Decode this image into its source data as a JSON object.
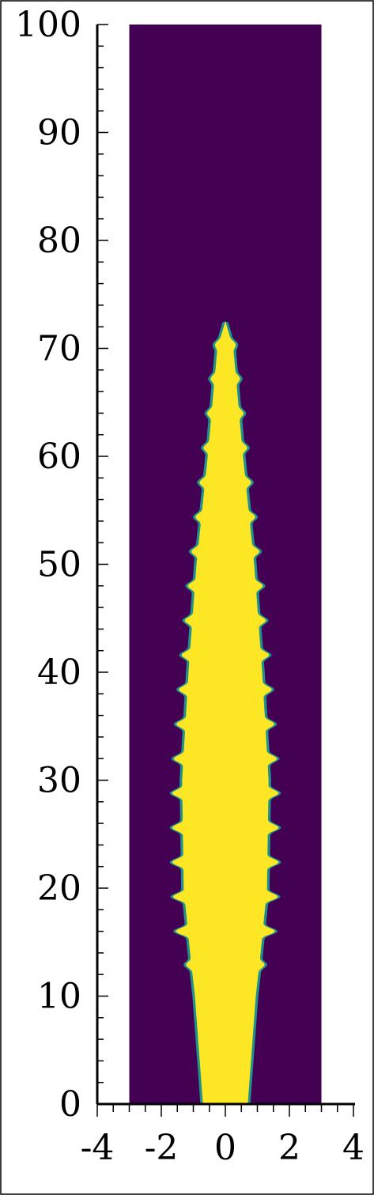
{
  "chart_data": {
    "type": "heatmap",
    "title": "",
    "xlabel": "",
    "ylabel": "",
    "xlim": [
      -4,
      4
    ],
    "ylim": [
      0,
      100
    ],
    "domain_x": [
      -3,
      3
    ],
    "x_ticks": [
      -4,
      -2,
      0,
      2,
      4
    ],
    "x_tick_labels": [
      "-4",
      "-2",
      "0",
      "2",
      "4"
    ],
    "y_ticks": [
      0,
      10,
      20,
      30,
      40,
      50,
      60,
      70,
      80,
      90,
      100
    ],
    "y_tick_labels": [
      "0",
      "10",
      "20",
      "30",
      "40",
      "50",
      "60",
      "70",
      "80",
      "90",
      "100"
    ],
    "colors": {
      "background": "#440154",
      "jet": "#fde725",
      "edge": "#21918c"
    },
    "jet_tip_height": 72.5,
    "jet_profile": [
      {
        "y": 0,
        "half_width": 0.7
      },
      {
        "y": 10,
        "half_width": 0.95
      },
      {
        "y": 14,
        "half_width": 1.1
      },
      {
        "y": 20,
        "half_width": 1.3
      },
      {
        "y": 30,
        "half_width": 1.35
      },
      {
        "y": 40,
        "half_width": 1.15
      },
      {
        "y": 50,
        "half_width": 0.9
      },
      {
        "y": 60,
        "half_width": 0.55
      },
      {
        "y": 70,
        "half_width": 0.25
      },
      {
        "y": 72.5,
        "half_width": 0
      }
    ],
    "ripple_amplitude": 0.25,
    "ripple_period": 3.2,
    "grid": false,
    "legend": "none"
  }
}
